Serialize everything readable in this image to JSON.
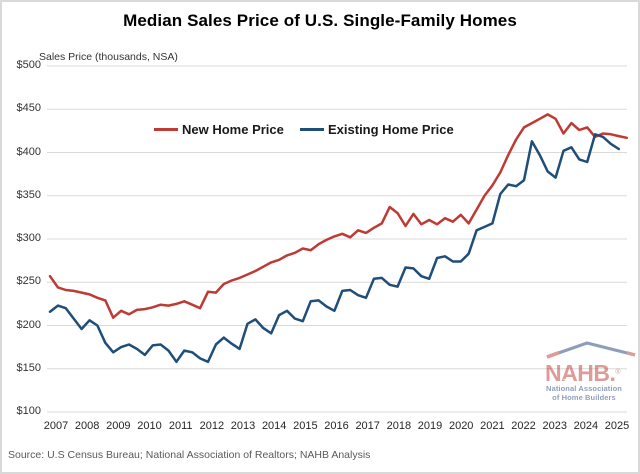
{
  "title": "Median Sales Price of U.S. Single-Family Homes",
  "y_axis_title": "Sales Price (thousands, NSA)",
  "source": "Source: U.S Census Bureau; National Association of Realtors; NAHB Analysis",
  "colors": {
    "new_home": "#be3a34",
    "existing_home": "#1f4e79",
    "gridline": "#d9d9d9"
  },
  "legend": [
    {
      "label": "New Home Price",
      "color": "#be3a34"
    },
    {
      "label": "Existing Home Price",
      "color": "#1f4e79"
    }
  ],
  "logo": {
    "acronym": "NAHB.",
    "registered_mark": "®",
    "subtitle_line1": "National Association",
    "subtitle_line2": "of Home Builders"
  },
  "chart_data": {
    "type": "line",
    "title": "Median Sales Price of U.S. Single-Family Homes",
    "ylabel": "Sales Price (thousands, NSA)",
    "ylim": [
      100,
      500
    ],
    "y_ticks": [
      100,
      150,
      200,
      250,
      300,
      350,
      400,
      450,
      500
    ],
    "y_tick_prefix": "$",
    "grid": "horizontal",
    "legend_position": "top-center-inside",
    "x_unit": "quarterly",
    "x_start": "2007Q1",
    "x_tick_labels": [
      "2007",
      "2008",
      "2009",
      "2010",
      "2011",
      "2012",
      "2013",
      "2014",
      "2015",
      "2016",
      "2017",
      "2018",
      "2019",
      "2020",
      "2021",
      "2022",
      "2023",
      "2024",
      "2025"
    ],
    "series": [
      {
        "name": "New Home Price",
        "color": "#be3a34",
        "values": [
          257,
          244,
          241,
          240,
          238,
          236,
          232,
          229,
          209,
          217,
          213,
          218,
          219,
          221,
          224,
          223,
          225,
          228,
          224,
          220,
          239,
          238,
          248,
          252,
          255,
          259,
          263,
          268,
          273,
          276,
          281,
          284,
          289,
          287,
          294,
          299,
          303,
          306,
          302,
          310,
          307,
          313,
          318,
          337,
          330,
          315,
          329,
          317,
          322,
          317,
          324,
          320,
          328,
          318,
          334,
          350,
          362,
          377,
          397,
          415,
          429,
          434,
          439,
          444,
          439,
          422,
          434,
          426,
          429,
          418,
          422,
          421,
          419,
          417
        ]
      },
      {
        "name": "Existing Home Price",
        "color": "#1f4e79",
        "values": [
          216,
          223,
          220,
          208,
          196,
          206,
          200,
          180,
          169,
          175,
          178,
          173,
          166,
          177,
          178,
          171,
          158,
          171,
          169,
          162,
          158,
          178,
          186,
          179,
          173,
          202,
          207,
          197,
          191,
          212,
          217,
          208,
          205,
          228,
          229,
          222,
          217,
          240,
          241,
          235,
          232,
          254,
          255,
          247,
          245,
          267,
          266,
          257,
          254,
          278,
          280,
          274,
          274,
          283,
          310,
          314,
          318,
          352,
          363,
          361,
          368,
          413,
          397,
          378,
          371,
          402,
          406,
          392,
          389,
          421,
          418,
          410,
          404
        ]
      }
    ]
  }
}
